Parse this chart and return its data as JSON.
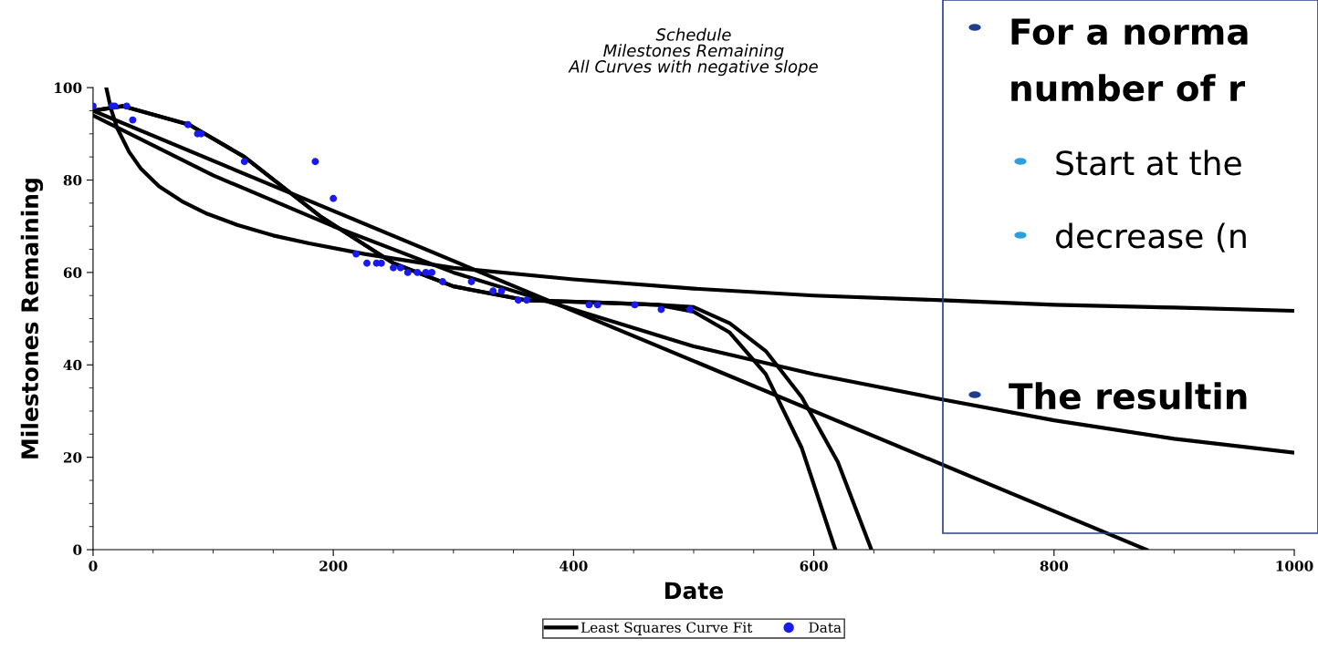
{
  "chart_data": {
    "type": "line",
    "title": "Schedule\nMilestones Remaining\nAll Curves with negative slope",
    "xlabel": "Date",
    "ylabel": "Milestones Remaining",
    "xlim": [
      0,
      1000
    ],
    "xticks": [
      0,
      200,
      400,
      600,
      800,
      1000
    ],
    "ylim": [
      0,
      100
    ],
    "yticks": [
      0,
      20,
      40,
      60,
      80,
      100
    ],
    "grid": false,
    "legend": "bottom",
    "marker": "none",
    "line_style": "solid",
    "series": [
      {
        "name": "Least Squares Curve Fit",
        "color": "#000000",
        "type": "line",
        "x": [
          0,
          877
        ],
        "values": [
          95,
          0
        ]
      },
      {
        "color": "#000000",
        "type": "line",
        "x": [
          0,
          100,
          200,
          300,
          400,
          500,
          600,
          707,
          800,
          900,
          1000
        ],
        "values": [
          94,
          81,
          70,
          60,
          52,
          44,
          38,
          32.5,
          28,
          24,
          21
        ]
      },
      {
        "color": "#000000",
        "type": "line",
        "x": [
          11,
          15,
          20,
          30,
          40,
          55,
          74,
          95,
          120,
          150,
          180,
          226,
          300,
          400,
          500,
          600,
          707,
          800,
          900,
          1000
        ],
        "values": [
          100,
          95.3,
          91.3,
          86.1,
          82.4,
          78.6,
          75.4,
          72.7,
          70.3,
          68,
          66.3,
          64,
          61,
          58.5,
          56.5,
          55,
          54,
          53,
          52.4,
          51.7
        ]
      },
      {
        "color": "#000000",
        "type": "line",
        "x": [
          0,
          25,
          80,
          126,
          190,
          250,
          300,
          360,
          420,
          470,
          500,
          530,
          560,
          590,
          618
        ],
        "values": [
          95,
          96,
          92,
          85,
          72,
          62,
          57,
          54,
          53.5,
          53,
          51.5,
          47,
          38,
          22,
          0
        ]
      },
      {
        "color": "#000000",
        "type": "line",
        "x": [
          0,
          25,
          80,
          126,
          190,
          250,
          300,
          360,
          420,
          470,
          500,
          530,
          560,
          590,
          620,
          648
        ],
        "values": [
          95,
          96,
          92,
          85,
          72,
          62,
          57,
          54,
          53.5,
          53,
          52.5,
          49,
          43,
          33,
          19,
          0
        ]
      },
      {
        "name": "Data",
        "color": "#1a1aee",
        "type": "scatter",
        "marker": "circle",
        "x": [
          0,
          16,
          18,
          28,
          33,
          79,
          87,
          90,
          126,
          185,
          200,
          219,
          228,
          236,
          240,
          250,
          256,
          262,
          270,
          277,
          282,
          291,
          315,
          333,
          340,
          354,
          361,
          413,
          420,
          451,
          473,
          497
        ],
        "values": [
          96,
          96,
          96,
          96,
          93,
          92,
          90,
          90,
          84,
          84,
          76,
          64,
          62,
          62,
          62,
          61,
          61,
          60,
          60,
          60,
          60,
          58,
          58,
          56,
          56,
          54,
          54,
          53,
          53,
          53,
          52,
          52
        ]
      }
    ],
    "annotations": [
      "For a norma",
      "number of r",
      "Start at the",
      "decrease (n",
      "The resultin"
    ]
  }
}
